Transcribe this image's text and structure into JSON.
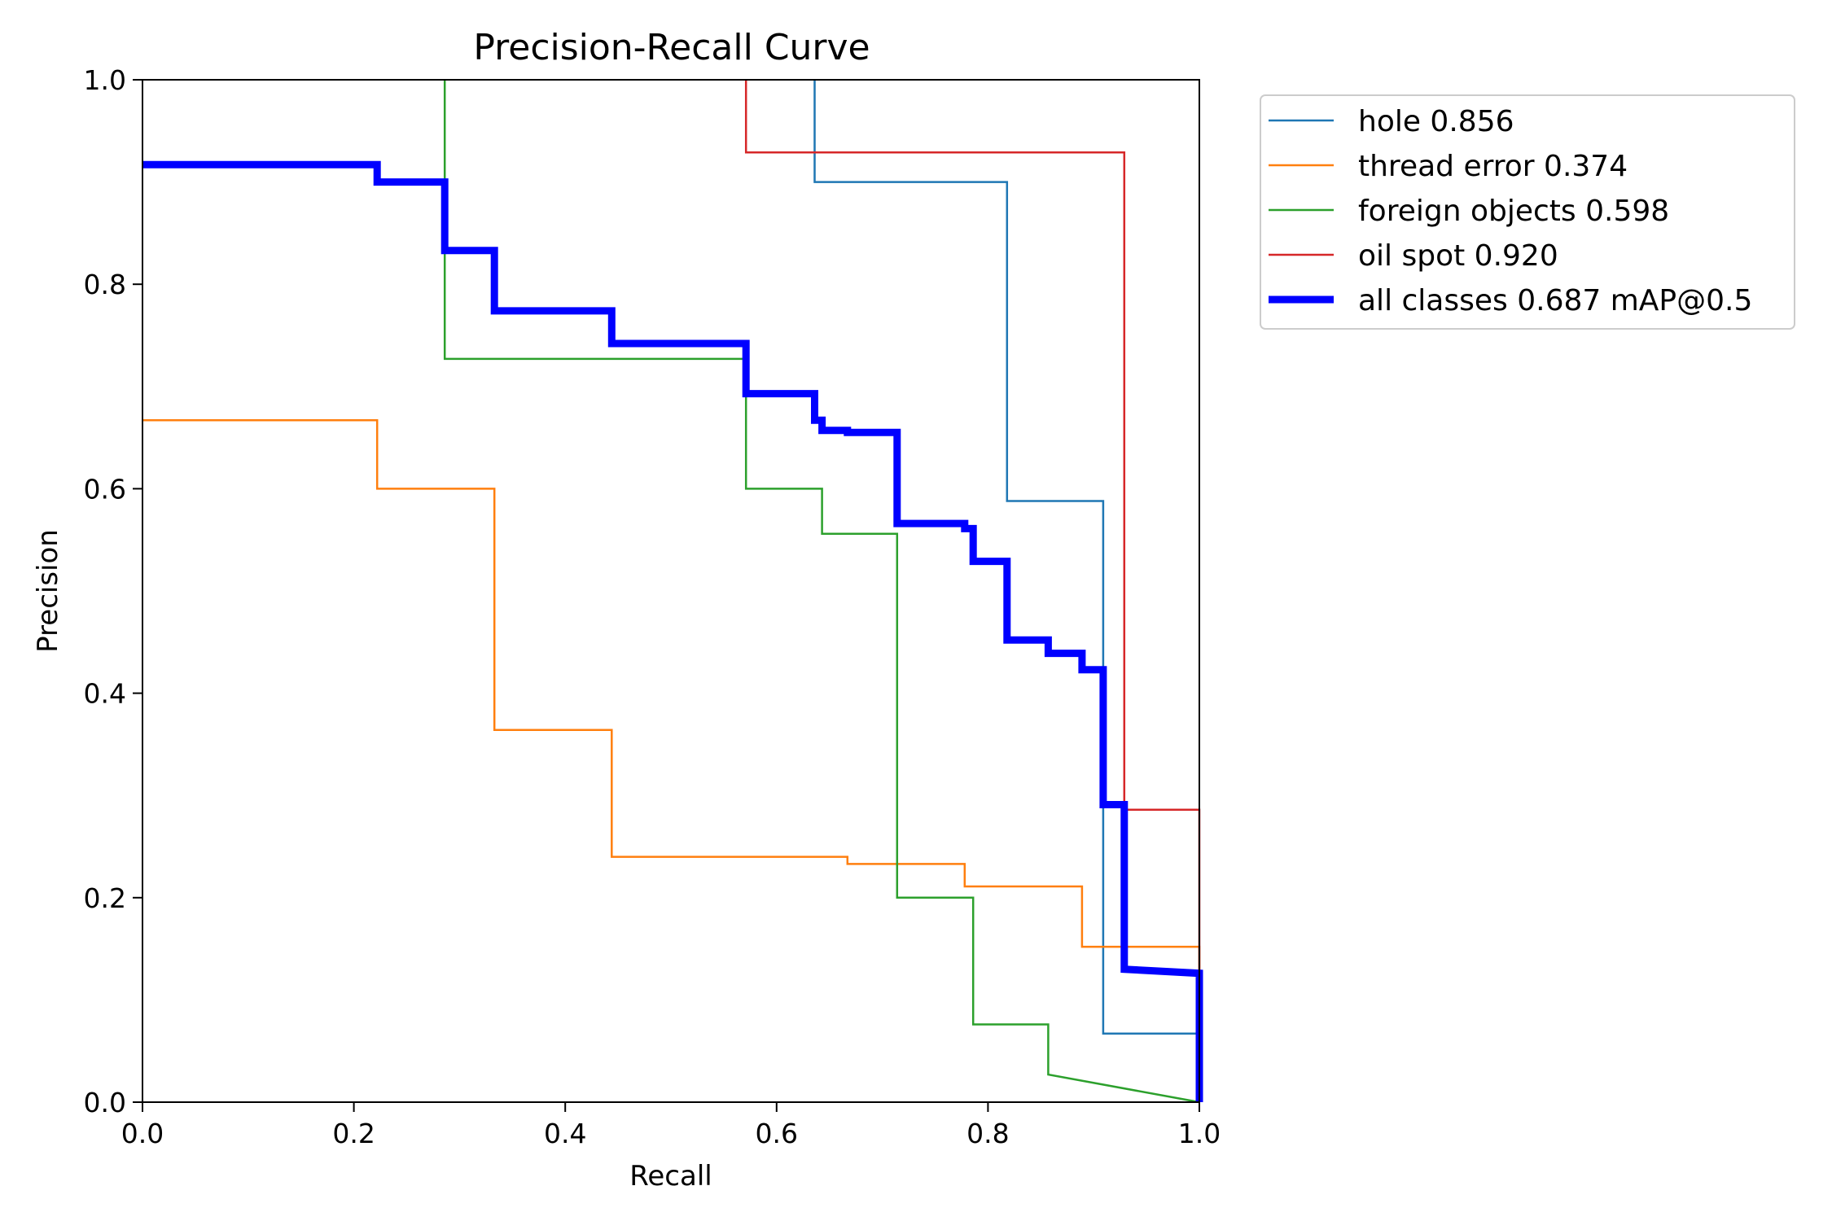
{
  "chart_data": {
    "type": "line",
    "title": "Precision-Recall Curve",
    "xlabel": "Recall",
    "ylabel": "Precision",
    "xlim": [
      0,
      1
    ],
    "ylim": [
      0,
      1
    ],
    "xticks": [
      "0.0",
      "0.2",
      "0.4",
      "0.6",
      "0.8",
      "1.0"
    ],
    "yticks": [
      "0.0",
      "0.2",
      "0.4",
      "0.6",
      "0.8",
      "1.0"
    ],
    "grid": false,
    "legend_position": "outside-top-right",
    "series": [
      {
        "name": "hole 0.856",
        "color": "#1f77b4",
        "x": [
          0.636,
          0.636,
          0.818,
          0.818,
          0.909,
          0.909,
          1.0,
          1.0
        ],
        "y": [
          1.0,
          0.9,
          0.9,
          0.588,
          0.588,
          0.067,
          0.067,
          0.0
        ]
      },
      {
        "name": "thread error 0.374",
        "color": "#ff7f0e",
        "x": [
          0.0,
          0.222,
          0.222,
          0.333,
          0.333,
          0.444,
          0.444,
          0.667,
          0.667,
          0.778,
          0.778,
          0.889,
          0.889,
          1.0,
          1.0
        ],
        "y": [
          0.667,
          0.667,
          0.6,
          0.6,
          0.364,
          0.364,
          0.24,
          0.24,
          0.233,
          0.233,
          0.211,
          0.211,
          0.152,
          0.152,
          0.0
        ]
      },
      {
        "name": "foreign objects 0.598",
        "color": "#2ca02c",
        "x": [
          0.286,
          0.286,
          0.571,
          0.571,
          0.643,
          0.643,
          0.714,
          0.714,
          0.786,
          0.786,
          0.857,
          0.857,
          1.0
        ],
        "y": [
          1.0,
          0.727,
          0.727,
          0.6,
          0.6,
          0.556,
          0.556,
          0.2,
          0.2,
          0.076,
          0.076,
          0.027,
          0.0
        ]
      },
      {
        "name": "oil spot 0.920",
        "color": "#d62728",
        "x": [
          0.571,
          0.571,
          0.929,
          0.929,
          1.0,
          1.0
        ],
        "y": [
          1.0,
          0.929,
          0.929,
          0.286,
          0.286,
          0.0
        ]
      },
      {
        "name": "all classes 0.687 mAP@0.5",
        "color": "#0000ff",
        "bold": true,
        "x": [
          0.0,
          0.222,
          0.222,
          0.286,
          0.286,
          0.333,
          0.333,
          0.444,
          0.444,
          0.571,
          0.571,
          0.636,
          0.636,
          0.643,
          0.643,
          0.667,
          0.667,
          0.714,
          0.714,
          0.778,
          0.778,
          0.786,
          0.786,
          0.818,
          0.818,
          0.857,
          0.857,
          0.889,
          0.889,
          0.909,
          0.909,
          0.929,
          0.929,
          1.0,
          1.0
        ],
        "y": [
          0.917,
          0.917,
          0.9,
          0.9,
          0.833,
          0.833,
          0.774,
          0.774,
          0.742,
          0.742,
          0.693,
          0.693,
          0.667,
          0.667,
          0.657,
          0.657,
          0.655,
          0.655,
          0.566,
          0.566,
          0.561,
          0.561,
          0.529,
          0.529,
          0.452,
          0.452,
          0.439,
          0.439,
          0.423,
          0.423,
          0.291,
          0.291,
          0.13,
          0.126,
          0.0
        ]
      }
    ]
  }
}
